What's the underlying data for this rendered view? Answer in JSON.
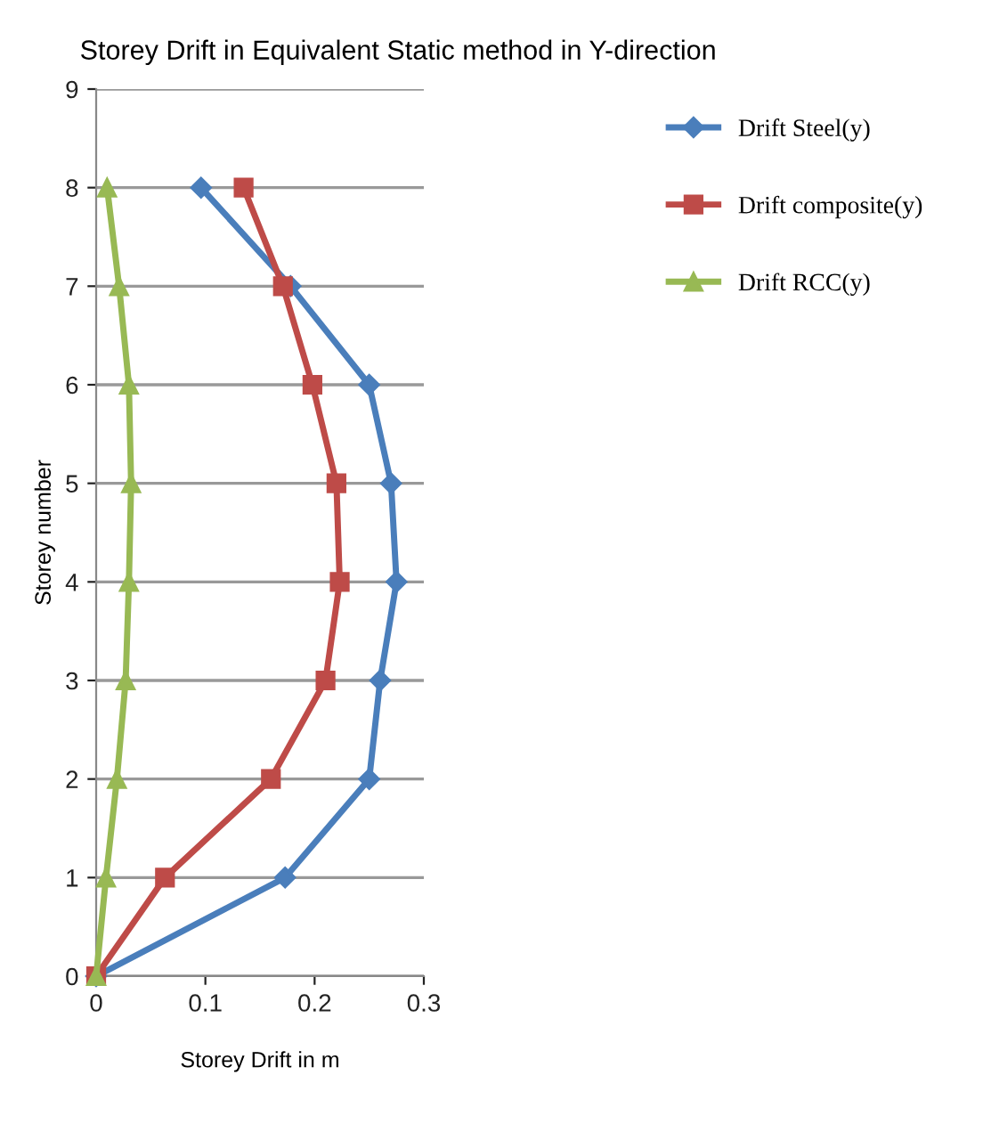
{
  "chart_data": {
    "type": "line",
    "title": "Storey Drift in Equivalent Static method in Y-direction",
    "xlabel": "Storey Drift in m",
    "ylabel": "Storey number",
    "xlim": [
      0,
      0.3
    ],
    "xticks": [
      0,
      0.1,
      0.2,
      0.3
    ],
    "ylim": [
      0,
      9
    ],
    "yticks": [
      0,
      1,
      2,
      3,
      4,
      5,
      6,
      7,
      8,
      9
    ],
    "grid": "y",
    "legend": "top right",
    "series": [
      {
        "name": "Drift Steel(y)",
        "color": "#4a7ebb",
        "marker": "diamond",
        "x": [
          0,
          0.173,
          0.25,
          0.26,
          0.275,
          0.27,
          0.25,
          0.178,
          0.096
        ],
        "values": [
          0,
          1,
          2,
          3,
          4,
          5,
          6,
          7,
          8
        ]
      },
      {
        "name": "Drift composite(y)",
        "color": "#be4b48",
        "marker": "square",
        "x": [
          0,
          0.063,
          0.16,
          0.21,
          0.223,
          0.22,
          0.198,
          0.171,
          0.135
        ],
        "values": [
          0,
          1,
          2,
          3,
          4,
          5,
          6,
          7,
          8
        ]
      },
      {
        "name": "Drift RCC(y)",
        "color": "#98b954",
        "marker": "triangle",
        "x": [
          0,
          0.009,
          0.019,
          0.027,
          0.03,
          0.032,
          0.03,
          0.021,
          0.01
        ],
        "values": [
          0,
          1,
          2,
          3,
          4,
          5,
          6,
          7,
          8
        ]
      }
    ]
  }
}
